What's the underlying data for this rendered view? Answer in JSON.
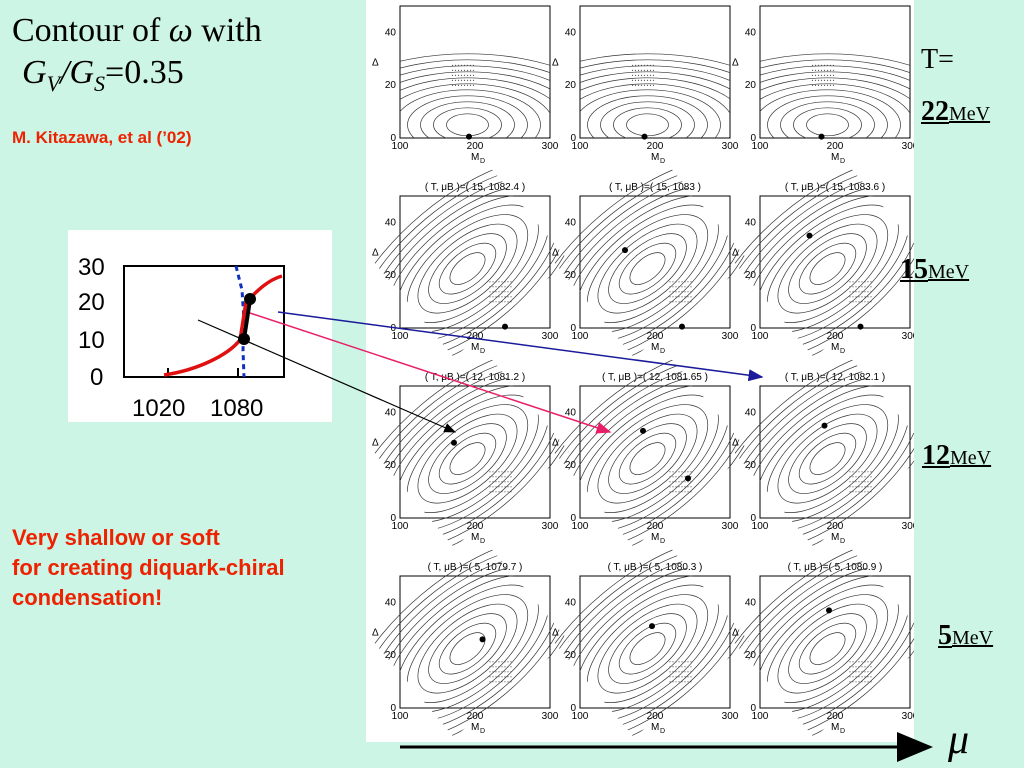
{
  "title": {
    "prefix": "Contour of ",
    "symbol": "ω",
    "suffix": " with",
    "ratio_gv": "G",
    "sub_v": "V",
    "slash": "/",
    "ratio_gs": "G",
    "sub_s": "S",
    "value": "=0.35"
  },
  "citation": "M. Kitazawa,  et al (’02)",
  "comment": [
    "Very shallow or soft",
    "for creating diquark-chiral",
    "condensation!"
  ],
  "inset": {
    "type": "line",
    "y_ticks": [
      "30",
      "20",
      "10",
      "0"
    ],
    "x_ticks": [
      "1020",
      "1080"
    ]
  },
  "temperatures": [
    {
      "prefix": "T=",
      "num": "22",
      "unit": "MeV"
    },
    {
      "prefix": "",
      "num": "15",
      "unit": "MeV"
    },
    {
      "prefix": "",
      "num": "12",
      "unit": "MeV"
    },
    {
      "prefix": "",
      "num": "5",
      "unit": "MeV"
    }
  ],
  "mu_label": "μ",
  "panel_axes": {
    "xlabel": "M",
    "xlabel_sub": "D",
    "ylabel": "Δ",
    "x_ticks": [
      "100",
      "200",
      "300"
    ],
    "y_ticks": [
      "0",
      "20",
      "40"
    ]
  },
  "panel_titles": [
    [
      "",
      "",
      ""
    ],
    [
      "( T, μB )=( 15, 1082.4 )",
      "( T, μB )=( 15, 1083 )",
      "( T, μB )=( 15, 1083.6 )"
    ],
    [
      "( T, μB )=( 12, 1081.2 )",
      "( T, μB )=( 12, 1081.65 )",
      "( T, μB )=( 12, 1082.1 )"
    ],
    [
      "( T, μB )=( 5, 1079.7 )",
      "( T, μB )=( 5, 1080.3 )",
      "( T, μB )=( 5, 1080.9 )"
    ]
  ],
  "colors": {
    "background": "#ccf5e6",
    "accent_red": "#ee2200",
    "arrow_blue": "#1a1a9a",
    "arrow_pink": "#e8206a",
    "curve_red": "#e01010",
    "dash_blue": "#1030c0"
  }
}
